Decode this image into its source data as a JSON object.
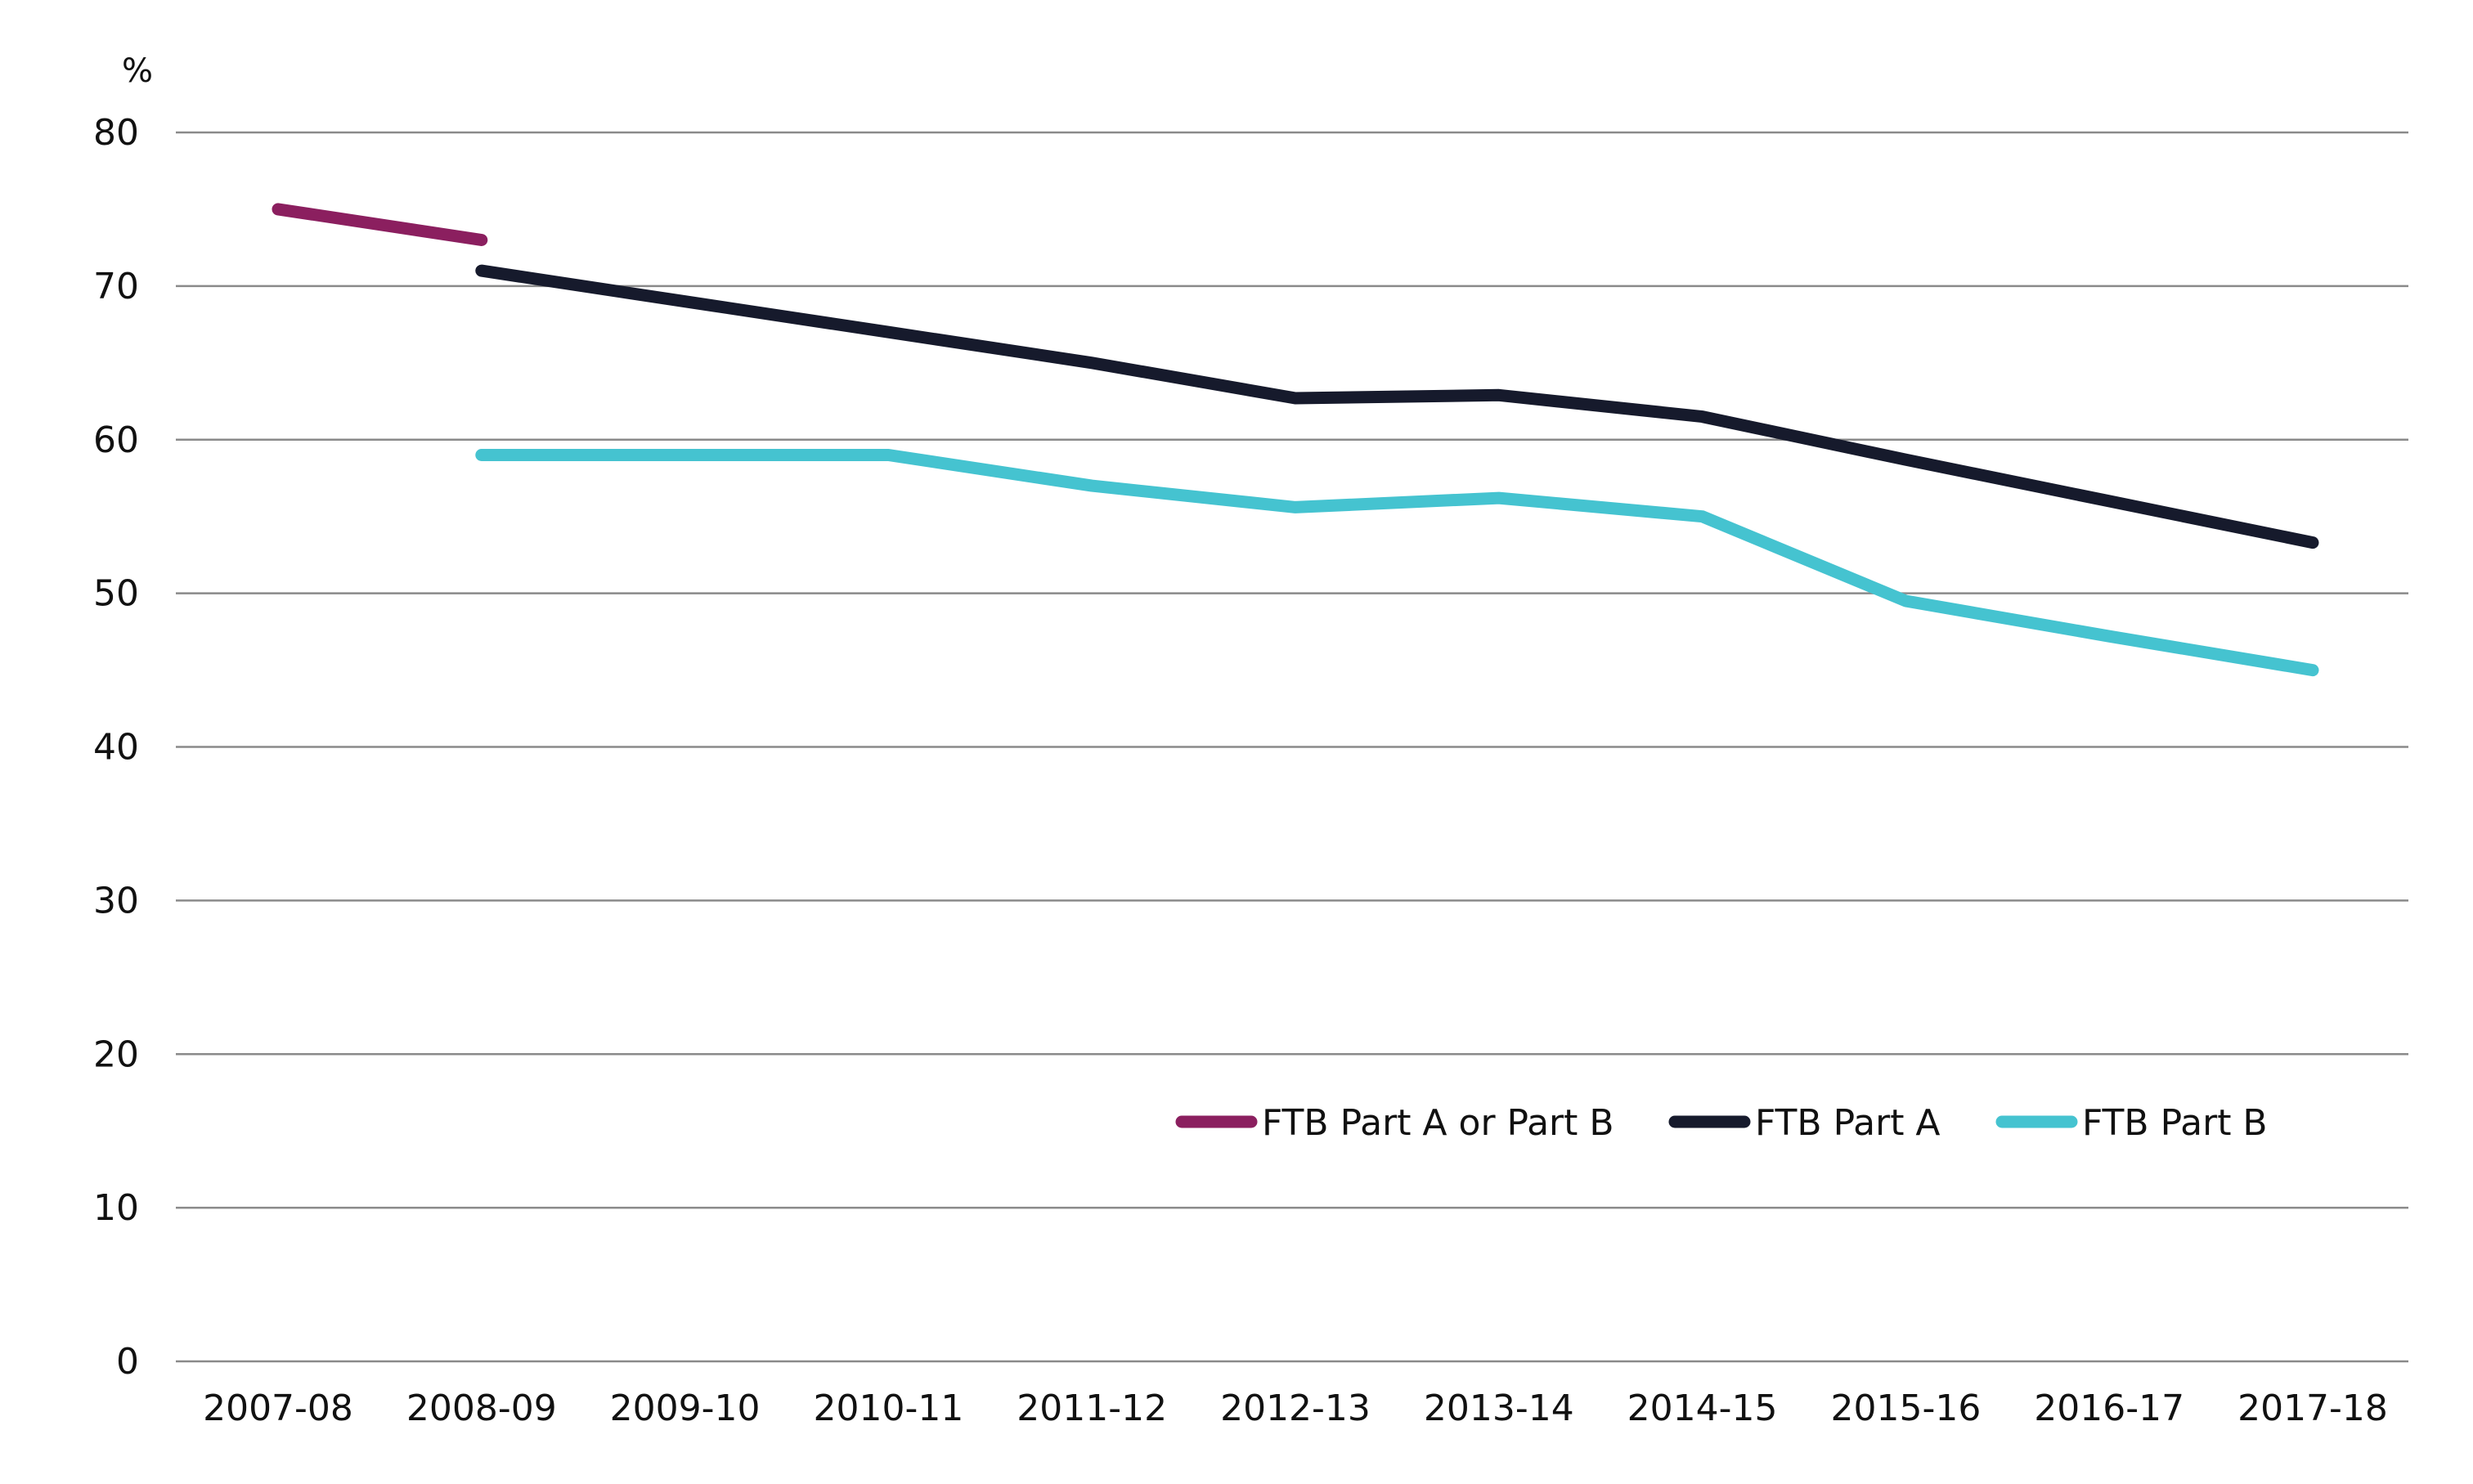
{
  "chart_data": {
    "type": "line",
    "title": "",
    "xlabel": "",
    "ylabel": "%",
    "ylim": [
      0,
      80
    ],
    "yticks": [
      "0",
      "10",
      "20",
      "30",
      "40",
      "50",
      "60",
      "70",
      "80"
    ],
    "categories": [
      "2007-08",
      "2008-09",
      "2009-10",
      "2010-11",
      "2011-12",
      "2012-13",
      "2013-14",
      "2014-15",
      "2015-16",
      "2016-17",
      "2017-18"
    ],
    "grid": true,
    "legend_position": "lower-right",
    "series": [
      {
        "name": "FTB Part A or Part B",
        "color": "#8b1f5f",
        "values": [
          75,
          73,
          null,
          null,
          null,
          null,
          null,
          null,
          null,
          null,
          null
        ]
      },
      {
        "name": "FTB Part A",
        "color": "#161a2c",
        "values": [
          null,
          71,
          69,
          67,
          65,
          62.7,
          62.9,
          61.5,
          58.7,
          56,
          53.3
        ]
      },
      {
        "name": "FTB Part B",
        "color": "#45c3d0",
        "values": [
          null,
          59,
          59,
          59,
          57,
          55.6,
          56.2,
          55,
          49.5,
          47.2,
          45
        ]
      }
    ]
  }
}
